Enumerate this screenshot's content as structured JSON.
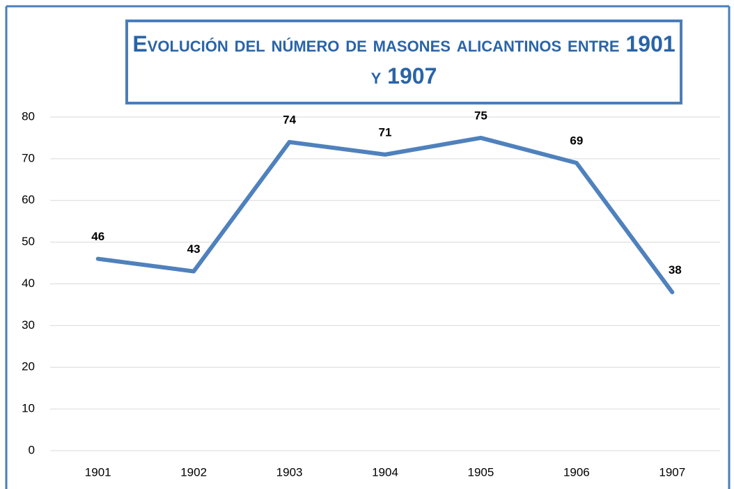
{
  "chart_data": {
    "type": "line",
    "title": "Evolución del número de masones alicantinos entre 1901 y 1907",
    "categories": [
      "1901",
      "1902",
      "1903",
      "1904",
      "1905",
      "1906",
      "1907"
    ],
    "values": [
      46,
      43,
      74,
      71,
      75,
      69,
      38
    ],
    "color": "#4f81bd",
    "ylim": [
      0,
      80
    ],
    "yticks": [
      0,
      10,
      20,
      30,
      40,
      50,
      60,
      70,
      80
    ],
    "grid": true
  }
}
